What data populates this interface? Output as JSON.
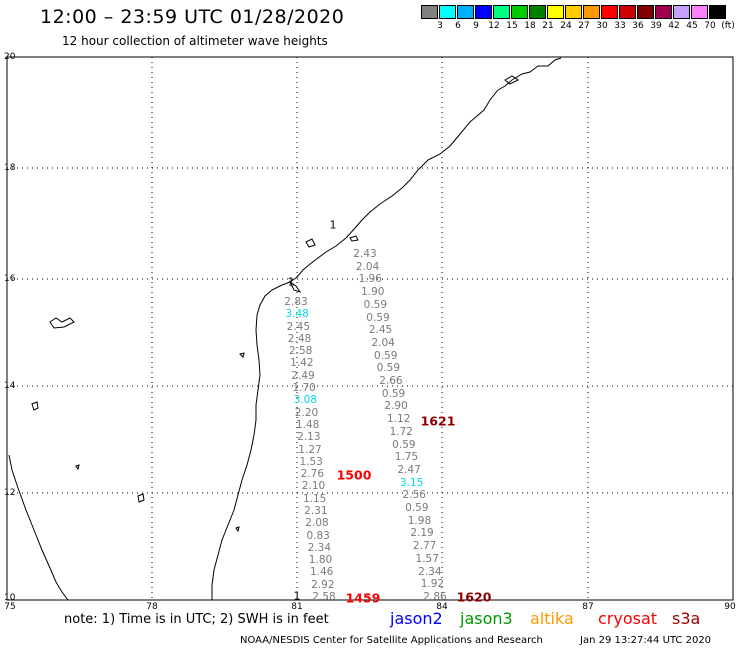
{
  "header": {
    "title": "12:00 – 23:59 UTC 01/28/2020",
    "subtitle": "12 hour collection of altimeter wave heights"
  },
  "legend": {
    "swatches": [
      "#808080",
      "#00ffff",
      "#00b0ff",
      "#0000ff",
      "#00ff80",
      "#00cc00",
      "#008000",
      "#ffff00",
      "#ffcc00",
      "#ff9900",
      "#ff0000",
      "#cc0000",
      "#800000",
      "#a00050",
      "#c8a0ff",
      "#ff80ff",
      "#000000"
    ],
    "labels": [
      "3",
      "6",
      "9",
      "12",
      "15",
      "18",
      "21",
      "24",
      "27",
      "30",
      "33",
      "36",
      "39",
      "42",
      "45",
      "70",
      "(ft)"
    ]
  },
  "axes": {
    "y_ticks": [
      "20",
      "18",
      "16",
      "14",
      "12",
      "10"
    ],
    "x_ticks": [
      "75",
      "78",
      "81",
      "84",
      "87",
      "90"
    ]
  },
  "map_data": {
    "extent": {
      "lon": [
        75,
        90
      ],
      "lat": [
        10,
        20
      ]
    },
    "track_a": [
      {
        "v": "2.43"
      },
      {
        "v": "2.04"
      },
      {
        "v": "1.96"
      },
      {
        "v": "1.90"
      },
      {
        "v": "0.59"
      },
      {
        "v": "0.59"
      },
      {
        "v": "2.45"
      },
      {
        "v": "2.04"
      },
      {
        "v": "0.59"
      },
      {
        "v": "0.59"
      },
      {
        "v": "2.66"
      },
      {
        "v": "0.59"
      },
      {
        "v": "2.90"
      },
      {
        "v": "1.12"
      },
      {
        "v": "1.72"
      },
      {
        "v": "0.59"
      },
      {
        "v": "1.75"
      },
      {
        "v": "2.47"
      },
      {
        "v": "3.15",
        "hi": true
      },
      {
        "v": "2.56"
      },
      {
        "v": "0.59"
      },
      {
        "v": "1.98"
      },
      {
        "v": "2.19"
      },
      {
        "v": "2.77"
      },
      {
        "v": "1.57"
      },
      {
        "v": "2.34"
      },
      {
        "v": "1.92"
      },
      {
        "v": "2.86"
      }
    ],
    "track_b": [
      {
        "v": "2.83"
      },
      {
        "v": "3.48",
        "hi": true
      },
      {
        "v": "2.45"
      },
      {
        "v": "2.48"
      },
      {
        "v": "2.58"
      },
      {
        "v": "1.42"
      },
      {
        "v": "2.49"
      },
      {
        "v": "1.70"
      },
      {
        "v": "3.08",
        "hi": true
      },
      {
        "v": "2.20"
      },
      {
        "v": "1.48"
      },
      {
        "v": "2.13"
      },
      {
        "v": "1.27"
      },
      {
        "v": "1.53"
      },
      {
        "v": "2.76"
      },
      {
        "v": "2.10"
      },
      {
        "v": "1.15"
      },
      {
        "v": "2.31"
      },
      {
        "v": "2.08"
      },
      {
        "v": "0.83"
      },
      {
        "v": "2.34"
      },
      {
        "v": "1.80"
      },
      {
        "v": "1.46"
      },
      {
        "v": "2.92"
      },
      {
        "v": "2.58"
      }
    ],
    "track_labels": [
      {
        "text": "1621",
        "color": "#8b0000"
      },
      {
        "text": "1500",
        "color": "#ff0000"
      },
      {
        "text": "1459",
        "color": "#ff0000"
      },
      {
        "text": "1620",
        "color": "#8b0000"
      }
    ],
    "annotations": [
      "1",
      "1",
      "1"
    ]
  },
  "footer": {
    "note": "note: 1) Time is in UTC; 2) SWH is in feet",
    "satellites": [
      {
        "name": "jason2",
        "color": "#0000ff"
      },
      {
        "name": "jason3",
        "color": "#009900"
      },
      {
        "name": "altika",
        "color": "#ff9900"
      },
      {
        "name": "cryosat",
        "color": "#ff0000"
      },
      {
        "name": "s3a",
        "color": "#a00000"
      }
    ],
    "credit": "NOAA/NESDIS Center for Satellite Applications and Research",
    "timestamp": "Jan 29 13:27:44 UTC 2020"
  }
}
